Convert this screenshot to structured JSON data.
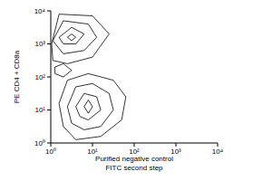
{
  "chart_data": {
    "type": "contour",
    "x_label": [
      "Purified negative control",
      "FITC second step"
    ],
    "y_label": "PE CD4 + CD8a",
    "log": true,
    "color": "#000000",
    "xlim": [
      1,
      10000
    ],
    "ylim": [
      1,
      10000
    ],
    "xticks": [
      {
        "value": 1,
        "label": "10⁰"
      },
      {
        "value": 10,
        "label": "10¹"
      },
      {
        "value": 100,
        "label": "10²"
      },
      {
        "value": 1000,
        "label": "10³"
      },
      {
        "value": 10000,
        "label": "10⁴"
      }
    ],
    "yticks": [
      {
        "value": 1,
        "label": "10⁰"
      },
      {
        "value": 10,
        "label": "10¹"
      },
      {
        "value": 100,
        "label": "10²"
      },
      {
        "value": 1000,
        "label": "10³"
      },
      {
        "value": 10000,
        "label": "10⁴"
      }
    ],
    "contours": [
      {
        "x": [
          6.31,
          7.94,
          10,
          7.94
        ],
        "y": [
          12.6,
          20,
          12.6,
          7.94
        ]
      },
      {
        "x": [
          3.98,
          6.31,
          12.6,
          15.8,
          7.94,
          5.01
        ],
        "y": [
          12.6,
          31.6,
          25.1,
          10,
          5.01,
          6.31
        ]
      },
      {
        "x": [
          2.51,
          3.98,
          10,
          25.1,
          31.6,
          15.8,
          6.31,
          3.16
        ],
        "y": [
          12.6,
          50.1,
          63.1,
          31.6,
          10,
          3.16,
          2.51,
          3.98
        ]
      },
      {
        "x": [
          1.58,
          2.51,
          7.94,
          31.6,
          63.1,
          50.1,
          15.8,
          3.98,
          2
        ],
        "y": [
          15.8,
          79.4,
          126,
          79.4,
          25.1,
          5.01,
          1.58,
          1.26,
          3.16
        ]
      },
      {
        "x": [
          2.51,
          3.16,
          3.98,
          3.16
        ],
        "y": [
          1585,
          1995,
          1585,
          1259
        ]
      },
      {
        "x": [
          1.58,
          3.16,
          6.31,
          3.98,
          2
        ],
        "y": [
          1585,
          3162,
          1995,
          1000,
          1000
        ]
      },
      {
        "x": [
          1.12,
          2,
          7.94,
          12.6,
          6.31,
          2
        ],
        "y": [
          1259,
          5012,
          3981,
          1585,
          631,
          501
        ]
      },
      {
        "x": [
          1.05,
          1.58,
          10,
          25.1,
          10,
          2.51,
          1.12
        ],
        "y": [
          1000,
          7943,
          7079,
          1995,
          398,
          251,
          316
        ]
      },
      {
        "x": [
          1.26,
          2,
          3.16,
          2,
          1.26
        ],
        "y": [
          200,
          251,
          158,
          100,
          126
        ]
      }
    ]
  }
}
